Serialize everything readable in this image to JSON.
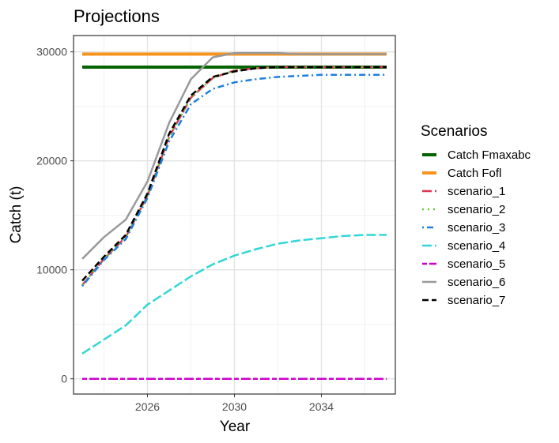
{
  "chart_data": {
    "type": "line",
    "title": "Projections",
    "xlabel": "Year",
    "ylabel": "Catch (t)",
    "xlim": [
      2022.6,
      2037.4
    ],
    "ylim": [
      -1400,
      31500
    ],
    "xticks": [
      2026,
      2030,
      2034
    ],
    "yticks": [
      0,
      10000,
      20000,
      30000
    ],
    "grid": true,
    "legend": {
      "title": "Scenarios",
      "placement": "right"
    },
    "series": [
      {
        "name": "Catch Fmaxabc",
        "color": "#006400",
        "dash": "solid",
        "width": 4,
        "x": [
          2023,
          2037
        ],
        "y": [
          28600,
          28600
        ]
      },
      {
        "name": "Catch Fofl",
        "color": "#F7941D",
        "dash": "solid",
        "width": 4,
        "x": [
          2023,
          2037
        ],
        "y": [
          29800,
          29800
        ]
      },
      {
        "name": "scenario_1",
        "color": "#E0344F",
        "dash": "longdash",
        "width": 2.5,
        "x": [
          2023,
          2024,
          2025,
          2026,
          2027,
          2028,
          2029,
          2030,
          2031,
          2032,
          2033,
          2034,
          2035,
          2036,
          2037
        ],
        "y": [
          8600,
          11000,
          13000,
          16800,
          22200,
          25800,
          27600,
          28300,
          28500,
          28600,
          28600,
          28600,
          28600,
          28600,
          28600
        ]
      },
      {
        "name": "scenario_2",
        "color": "#66CC33",
        "dash": "dotted",
        "width": 2.5,
        "x": [
          2023,
          2024,
          2025,
          2026,
          2027,
          2028,
          2029,
          2030,
          2031,
          2032,
          2033,
          2034,
          2035,
          2036,
          2037
        ],
        "y": [
          8600,
          11000,
          13000,
          16800,
          22200,
          25800,
          27600,
          28300,
          28500,
          28600,
          28600,
          28600,
          28600,
          28600,
          28600
        ]
      },
      {
        "name": "scenario_3",
        "color": "#1E7FE0",
        "dash": "dotdash",
        "width": 2.5,
        "x": [
          2023,
          2024,
          2025,
          2026,
          2027,
          2028,
          2029,
          2030,
          2031,
          2032,
          2033,
          2034,
          2035,
          2036,
          2037
        ],
        "y": [
          8500,
          10900,
          12800,
          16600,
          21800,
          25200,
          26600,
          27200,
          27500,
          27700,
          27800,
          27900,
          27900,
          27900,
          27900
        ]
      },
      {
        "name": "scenario_4",
        "color": "#33D6D6",
        "dash": "longdash",
        "width": 2.5,
        "x": [
          2023,
          2024,
          2025,
          2026,
          2027,
          2028,
          2029,
          2030,
          2031,
          2032,
          2033,
          2034,
          2035,
          2036,
          2037
        ],
        "y": [
          2300,
          3600,
          4900,
          6800,
          8100,
          9400,
          10500,
          11300,
          11900,
          12400,
          12700,
          12900,
          13100,
          13200,
          13200
        ]
      },
      {
        "name": "scenario_5",
        "color": "#CC00CC",
        "dash": "twodash",
        "width": 2.5,
        "x": [
          2023,
          2024,
          2025,
          2026,
          2027,
          2028,
          2029,
          2030,
          2031,
          2032,
          2033,
          2034,
          2035,
          2036,
          2037
        ],
        "y": [
          0,
          0,
          0,
          0,
          0,
          0,
          0,
          0,
          0,
          0,
          0,
          0,
          0,
          0,
          0
        ]
      },
      {
        "name": "scenario_6",
        "color": "#999999",
        "dash": "solid",
        "width": 2.5,
        "x": [
          2023,
          2024,
          2025,
          2026,
          2027,
          2028,
          2029,
          2030,
          2031,
          2032,
          2033,
          2034,
          2035,
          2036,
          2037
        ],
        "y": [
          11000,
          13000,
          14600,
          18100,
          23500,
          27500,
          29500,
          29900,
          29900,
          29900,
          29800,
          29800,
          29800,
          29800,
          29800
        ]
      },
      {
        "name": "scenario_7",
        "color": "#000000",
        "dash": "dashed",
        "width": 2.5,
        "x": [
          2023,
          2024,
          2025,
          2026,
          2027,
          2028,
          2029,
          2030,
          2031,
          2032,
          2033,
          2034,
          2035,
          2036,
          2037
        ],
        "y": [
          9000,
          11200,
          13200,
          17000,
          22500,
          26000,
          27700,
          28200,
          28500,
          28600,
          28600,
          28600,
          28600,
          28600,
          28600
        ]
      }
    ]
  }
}
